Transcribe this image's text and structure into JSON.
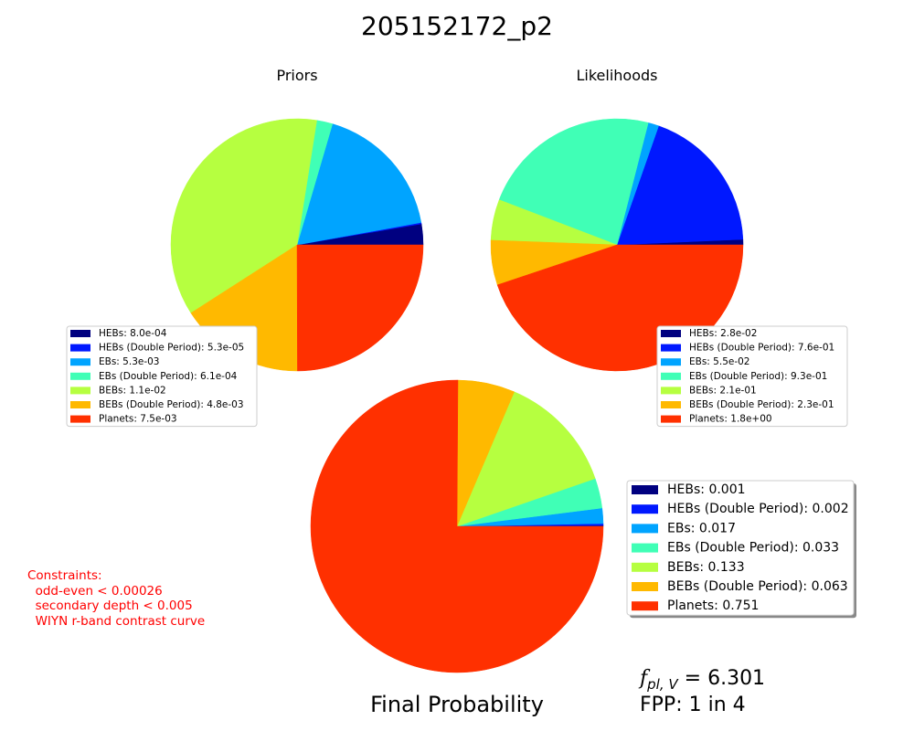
{
  "title": "205152172_p2",
  "chart_data": [
    {
      "type": "pie",
      "title": "Priors",
      "labels": [
        "HEBs",
        "HEBs (Double Period)",
        "EBs",
        "EBs (Double Period)",
        "BEBs",
        "BEBs (Double Period)",
        "Planets"
      ],
      "values": [
        0.0008,
        5.3e-05,
        0.0053,
        0.00061,
        0.011,
        0.0048,
        0.0075
      ],
      "legend": [
        "HEBs: 8.0e-04",
        "HEBs (Double Period): 5.3e-05",
        "EBs: 5.3e-03",
        "EBs (Double Period): 6.1e-04",
        "BEBs: 1.1e-02",
        "BEBs (Double Period): 4.8e-03",
        "Planets: 7.5e-03"
      ],
      "legend_placement": "lower-left"
    },
    {
      "type": "pie",
      "title": "Likelihoods",
      "labels": [
        "HEBs",
        "HEBs (Double Period)",
        "EBs",
        "EBs (Double Period)",
        "BEBs",
        "BEBs (Double Period)",
        "Planets"
      ],
      "values": [
        0.028,
        0.76,
        0.055,
        0.93,
        0.21,
        0.23,
        1.8
      ],
      "legend": [
        "HEBs: 2.8e-02",
        "HEBs (Double Period): 7.6e-01",
        "EBs: 5.5e-02",
        "EBs (Double Period): 9.3e-01",
        "BEBs: 2.1e-01",
        "BEBs (Double Period): 2.3e-01",
        "Planets: 1.8e+00"
      ],
      "legend_placement": "lower-right"
    },
    {
      "type": "pie",
      "title": "Final Probability",
      "labels": [
        "HEBs",
        "HEBs (Double Period)",
        "EBs",
        "EBs (Double Period)",
        "BEBs",
        "BEBs (Double Period)",
        "Planets"
      ],
      "values": [
        0.001,
        0.002,
        0.017,
        0.033,
        0.133,
        0.063,
        0.751
      ],
      "legend": [
        "HEBs: 0.001",
        "HEBs (Double Period): 0.002",
        "EBs: 0.017",
        "EBs (Double Period): 0.033",
        "BEBs: 0.133",
        "BEBs (Double Period): 0.063",
        "Planets: 0.751"
      ],
      "legend_placement": "right"
    }
  ],
  "colors": [
    "#000080",
    "#0018ff",
    "#00a4ff",
    "#40ffb6",
    "#b6ff40",
    "#ffb900",
    "#ff3000"
  ],
  "constraints": {
    "heading": "Constraints:",
    "lines": [
      "  odd-even < 0.00026",
      "  secondary depth < 0.005",
      "  WIYN r-band contrast curve"
    ],
    "color": "#ff0000"
  },
  "fpl": {
    "symbol": "f",
    "subscript": "pl, V",
    "equals": " = 6.301"
  },
  "fpp": "FPP: 1 in 4"
}
